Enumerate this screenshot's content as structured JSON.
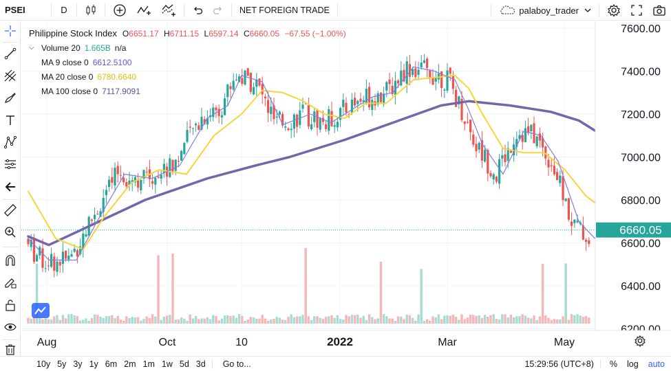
{
  "topbar": {
    "symbol": "PSEI",
    "interval": "D",
    "indicator_button": "NET FOREIGN TRADE",
    "user": "palaboy_trader",
    "icons": [
      "plus-circle-icon",
      "indicators-icon",
      "undo-icon",
      "redo-icon",
      "settings-icon",
      "fullscreen-icon",
      "camera-icon"
    ]
  },
  "legend": {
    "title": "Philippine Stock Index",
    "open_label": "O",
    "open": "6651.17",
    "high_label": "H",
    "high": "6711.15",
    "low_label": "L",
    "low": "6597.14",
    "close_label": "C",
    "close": "6660.05",
    "change": "−67.55 (−1.00%)",
    "volume_name": "Volume 20",
    "volume_value": "1.665B",
    "volume_extra": "n/a",
    "ma9_name": "MA 9 close 0",
    "ma9_value": "6612.5100",
    "ma20_name": "MA 20 close 0",
    "ma20_value": "6780.6640",
    "ma100_name": "MA 100 close 0",
    "ma100_value": "7117.9091"
  },
  "colors": {
    "up": "#26a69a",
    "down": "#ef5350",
    "ma9": "#7e7ce6",
    "ma20": "#f5d53b",
    "ma100": "#7466a8",
    "vol_up": "#a8dbd3",
    "vol_down": "#f7b5b5",
    "price_label_bg": "#26a69a",
    "axis_text": "#131722"
  },
  "chart_data": {
    "type": "candlestick",
    "title": "Philippine Stock Index",
    "yaxis_ticks": [
      "7600.00",
      "7400.00",
      "7200.00",
      "7000.00",
      "6800.00",
      "6600.00",
      "6400.00",
      "6200.00"
    ],
    "ylim": [
      6200,
      7640
    ],
    "xaxis_ticks": [
      "Aug",
      "Oct",
      "10",
      "2022",
      "Mar",
      "May"
    ],
    "last_price": "6660.05",
    "series": [
      {
        "name": "MA 100 close 0",
        "values_at_key_points": [
          [
            0,
            6630
          ],
          [
            30,
            6590
          ],
          [
            90,
            6680
          ],
          [
            170,
            6800
          ],
          [
            260,
            6900
          ],
          [
            330,
            6960
          ],
          [
            380,
            7000
          ],
          [
            460,
            7080
          ],
          [
            530,
            7160
          ],
          [
            600,
            7240
          ],
          [
            640,
            7260
          ],
          [
            700,
            7240
          ],
          [
            760,
            7210
          ],
          [
            800,
            7170
          ],
          [
            826,
            7118
          ]
        ]
      },
      {
        "name": "MA 20 close 0",
        "values_at_key_points": [
          [
            0,
            6840
          ],
          [
            40,
            6620
          ],
          [
            80,
            6570
          ],
          [
            110,
            6720
          ],
          [
            150,
            6880
          ],
          [
            190,
            6940
          ],
          [
            230,
            6920
          ],
          [
            270,
            7100
          ],
          [
            310,
            7200
          ],
          [
            340,
            7310
          ],
          [
            370,
            7300
          ],
          [
            400,
            7260
          ],
          [
            430,
            7200
          ],
          [
            460,
            7180
          ],
          [
            490,
            7250
          ],
          [
            520,
            7250
          ],
          [
            560,
            7360
          ],
          [
            590,
            7370
          ],
          [
            620,
            7380
          ],
          [
            640,
            7320
          ],
          [
            660,
            7200
          ],
          [
            690,
            7040
          ],
          [
            720,
            7020
          ],
          [
            750,
            7020
          ],
          [
            780,
            6940
          ],
          [
            810,
            6820
          ],
          [
            826,
            6781
          ]
        ]
      },
      {
        "name": "MA 9 close 0",
        "values_at_key_points": [
          [
            0,
            6620
          ],
          [
            30,
            6520
          ],
          [
            70,
            6520
          ],
          [
            100,
            6700
          ],
          [
            140,
            6920
          ],
          [
            180,
            6900
          ],
          [
            220,
            6960
          ],
          [
            260,
            7180
          ],
          [
            290,
            7240
          ],
          [
            310,
            7380
          ],
          [
            340,
            7350
          ],
          [
            370,
            7150
          ],
          [
            410,
            7200
          ],
          [
            440,
            7160
          ],
          [
            470,
            7220
          ],
          [
            500,
            7280
          ],
          [
            530,
            7300
          ],
          [
            560,
            7420
          ],
          [
            590,
            7400
          ],
          [
            620,
            7360
          ],
          [
            640,
            7220
          ],
          [
            660,
            7060
          ],
          [
            690,
            6920
          ],
          [
            720,
            7120
          ],
          [
            745,
            7100
          ],
          [
            770,
            6980
          ],
          [
            800,
            6700
          ],
          [
            826,
            6612
          ]
        ]
      }
    ]
  },
  "bottombar": {
    "ranges": [
      "10y",
      "5y",
      "3y",
      "1y",
      "6m",
      "2m",
      "1m",
      "1w",
      "5d",
      "3d"
    ],
    "goto": "Go to...",
    "time": "15:29:56 (UTC+8)",
    "percent": "%",
    "log": "log",
    "auto": "auto"
  }
}
